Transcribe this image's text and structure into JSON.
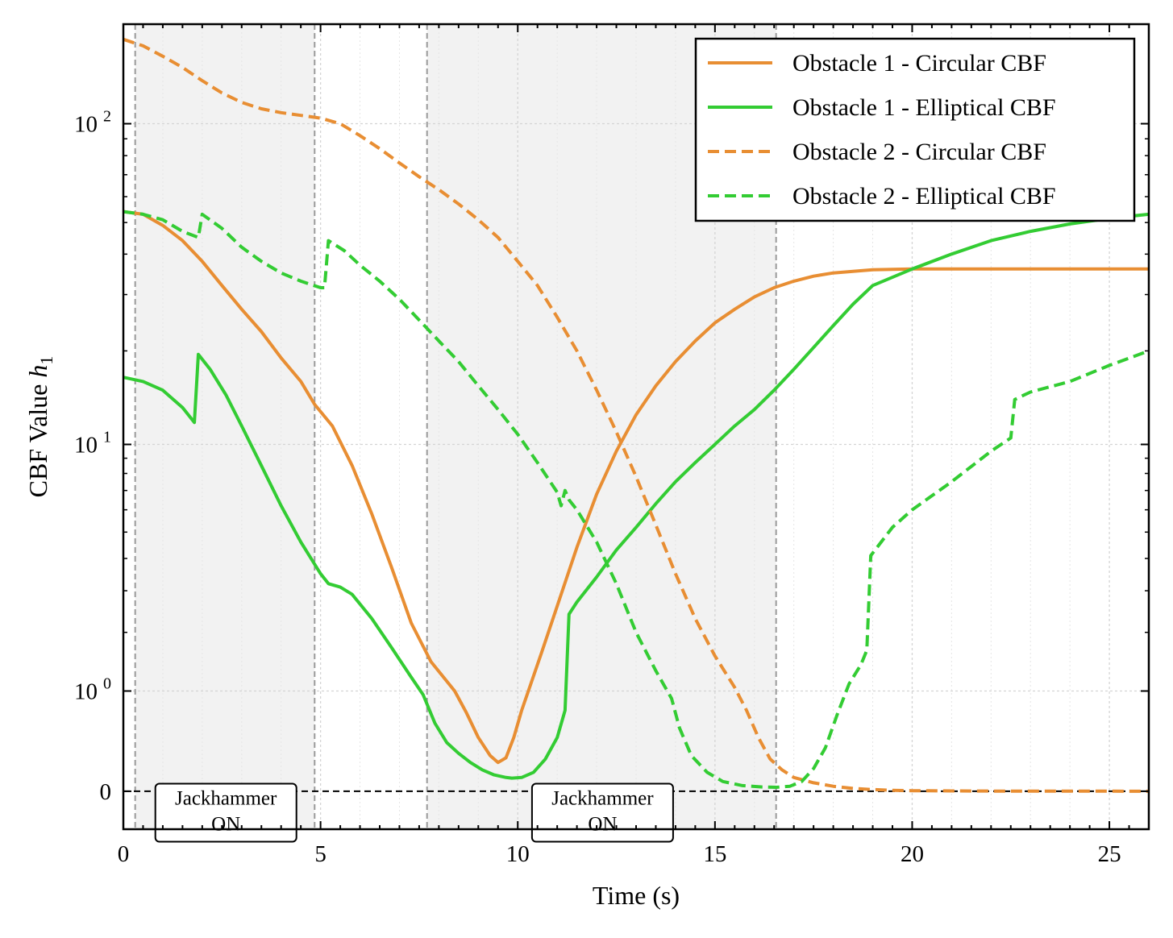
{
  "chart_data": {
    "type": "line",
    "title": "",
    "xlabel": "Time (s)",
    "ylabel_prefix": "CBF Value ",
    "ylabel_symbol": "h",
    "ylabel_subscript": "1",
    "yscale": "symlog",
    "xlim": [
      0,
      26
    ],
    "ylim": [
      -0.3,
      200
    ],
    "x_ticks": [
      0,
      5,
      10,
      15,
      20,
      25
    ],
    "x_tick_labels": [
      "0",
      "5",
      "10",
      "15",
      "20",
      "25"
    ],
    "y_ticks": [
      {
        "value": 0,
        "base": "0",
        "exp": ""
      },
      {
        "value": 1,
        "base": "10",
        "exp": "0"
      },
      {
        "value": 10,
        "base": "10",
        "exp": "1"
      },
      {
        "value": 100,
        "base": "10",
        "exp": "2"
      }
    ],
    "grid": true,
    "legend_position": "top-right",
    "shaded_regions": [
      {
        "x0": 0.3,
        "x1": 4.85
      },
      {
        "x0": 7.7,
        "x1": 16.55
      }
    ],
    "event_lines": [
      0.3,
      4.85,
      7.7,
      16.55
    ],
    "annotations": [
      {
        "x": 2.6,
        "y": -0.16,
        "lines": [
          "Jackhammer",
          "ON"
        ]
      },
      {
        "x": 12.15,
        "y": -0.16,
        "lines": [
          "Jackhammer",
          "ON"
        ]
      }
    ],
    "series": [
      {
        "name": "Obstacle 1 - Circular CBF",
        "color": "#e88e33",
        "dash": "solid",
        "x": [
          0,
          0.5,
          1.0,
          1.5,
          2.0,
          2.5,
          3.0,
          3.5,
          4.0,
          4.5,
          4.85,
          5.3,
          5.8,
          6.3,
          6.8,
          7.3,
          7.8,
          8.4,
          8.7,
          9.0,
          9.3,
          9.5,
          9.7,
          9.9,
          10.1,
          10.3,
          10.6,
          11.0,
          11.5,
          12.0,
          12.5,
          13.0,
          13.5,
          14.0,
          14.5,
          15.0,
          15.5,
          16.0,
          16.5,
          17.0,
          17.5,
          18.0,
          19.0,
          20.0,
          21.0,
          22.0,
          23.0,
          24.0,
          25.0,
          26.0
        ],
        "y": [
          54,
          53,
          49,
          44,
          38,
          32,
          27,
          23,
          19,
          16,
          13.5,
          11.5,
          8.5,
          5.8,
          3.7,
          2.2,
          1.45,
          1.0,
          0.72,
          0.45,
          0.28,
          0.22,
          0.26,
          0.45,
          0.75,
          1.05,
          1.6,
          2.6,
          4.4,
          6.8,
          9.5,
          12.5,
          15.5,
          18.5,
          21.5,
          24.5,
          27,
          29.5,
          31.5,
          33,
          34.2,
          35,
          35.8,
          36,
          36,
          36,
          36,
          36,
          36,
          36
        ]
      },
      {
        "name": "Obstacle 1 - Elliptical CBF",
        "color": "#33cc33",
        "dash": "solid",
        "x": [
          0,
          0.5,
          1.0,
          1.5,
          1.8,
          1.9,
          2.2,
          2.6,
          3.0,
          3.5,
          4.0,
          4.5,
          5.0,
          5.2,
          5.5,
          5.8,
          6.3,
          6.8,
          7.3,
          7.6,
          7.9,
          8.2,
          8.5,
          8.8,
          9.1,
          9.4,
          9.7,
          9.85,
          10.1,
          10.4,
          10.7,
          11.0,
          11.2,
          11.3,
          11.5,
          12.0,
          12.5,
          13.0,
          13.5,
          14.0,
          14.5,
          15.0,
          15.5,
          16.0,
          16.5,
          17.0,
          17.5,
          18.0,
          18.5,
          19.0,
          20.0,
          21.0,
          22.0,
          23.0,
          24.0,
          25.0,
          26.0
        ],
        "y": [
          16.5,
          16,
          15,
          13.2,
          11.8,
          19.5,
          17.5,
          14.5,
          11.5,
          8.5,
          6.2,
          4.6,
          3.5,
          3.2,
          3.1,
          2.9,
          2.3,
          1.7,
          1.2,
          0.95,
          0.6,
          0.4,
          0.3,
          0.22,
          0.16,
          0.12,
          0.1,
          0.095,
          0.1,
          0.14,
          0.25,
          0.45,
          0.75,
          2.4,
          2.7,
          3.4,
          4.3,
          5.2,
          6.3,
          7.5,
          8.7,
          10,
          11.5,
          13,
          15,
          17.5,
          20.5,
          24,
          28,
          32,
          36,
          40,
          44,
          47,
          49.5,
          51.5,
          53
        ]
      },
      {
        "name": "Obstacle 2 - Circular CBF",
        "color": "#e88e33",
        "dash": "dashed",
        "x": [
          0,
          0.5,
          1.0,
          1.5,
          2.0,
          2.5,
          3.0,
          3.5,
          4.0,
          4.5,
          5.0,
          5.5,
          6.0,
          6.5,
          7.0,
          7.5,
          8.0,
          8.5,
          9.0,
          9.5,
          10.0,
          10.5,
          11.0,
          11.5,
          12.0,
          12.5,
          13.0,
          13.5,
          14.0,
          14.5,
          15.0,
          15.5,
          15.8,
          16.1,
          16.4,
          16.7,
          17.0,
          17.5,
          18.0,
          18.5,
          19.0,
          19.5,
          20.0,
          21.0,
          22.0,
          23.0,
          24.0,
          25.0,
          26.0
        ],
        "y": [
          180,
          172,
          160,
          148,
          135,
          124,
          116,
          111,
          108,
          106,
          104,
          100,
          92,
          84,
          76,
          69,
          63,
          57,
          51,
          45,
          38,
          32,
          25.5,
          20,
          15,
          11,
          7.8,
          5.3,
          3.5,
          2.3,
          1.55,
          1.05,
          0.75,
          0.45,
          0.25,
          0.16,
          0.1,
          0.06,
          0.035,
          0.02,
          0.012,
          0.007,
          0.004,
          0.002,
          0.001,
          0.0008,
          0.0005,
          0.0004,
          0.0003
        ]
      },
      {
        "name": "Obstacle 2 - Elliptical CBF",
        "color": "#33cc33",
        "dash": "dashed",
        "x": [
          0,
          0.5,
          1.0,
          1.5,
          1.9,
          2.0,
          2.5,
          3.0,
          3.5,
          4.0,
          4.5,
          5.0,
          5.1,
          5.2,
          5.6,
          6.0,
          6.5,
          7.0,
          7.5,
          8.0,
          8.5,
          9.0,
          9.5,
          10.0,
          10.5,
          11.0,
          11.1,
          11.2,
          11.3,
          11.5,
          12.0,
          12.5,
          13.0,
          13.5,
          13.9,
          14.1,
          14.4,
          14.8,
          15.2,
          15.7,
          16.2,
          16.55,
          16.9,
          17.2,
          17.5,
          17.8,
          18.1,
          18.4,
          18.7,
          18.85,
          18.95,
          19.5,
          20.0,
          21.0,
          22.0,
          22.5,
          22.6,
          22.8,
          23.0,
          24.0,
          25.0,
          26.0
        ],
        "y": [
          54,
          53,
          51,
          47,
          45,
          53,
          48,
          42,
          38,
          35,
          33,
          31.5,
          31.5,
          44,
          41,
          37,
          33,
          29,
          25,
          21.5,
          18.5,
          15.5,
          13,
          10.8,
          8.7,
          6.9,
          6.2,
          7,
          6.5,
          6,
          4.6,
          3.2,
          2.0,
          1.3,
          0.9,
          0.55,
          0.28,
          0.14,
          0.07,
          0.04,
          0.03,
          0.028,
          0.035,
          0.07,
          0.17,
          0.35,
          0.7,
          1.1,
          1.4,
          1.65,
          4.1,
          5.2,
          6.0,
          7.5,
          9.5,
          10.5,
          14,
          14.4,
          14.8,
          16,
          18,
          20
        ]
      }
    ]
  }
}
